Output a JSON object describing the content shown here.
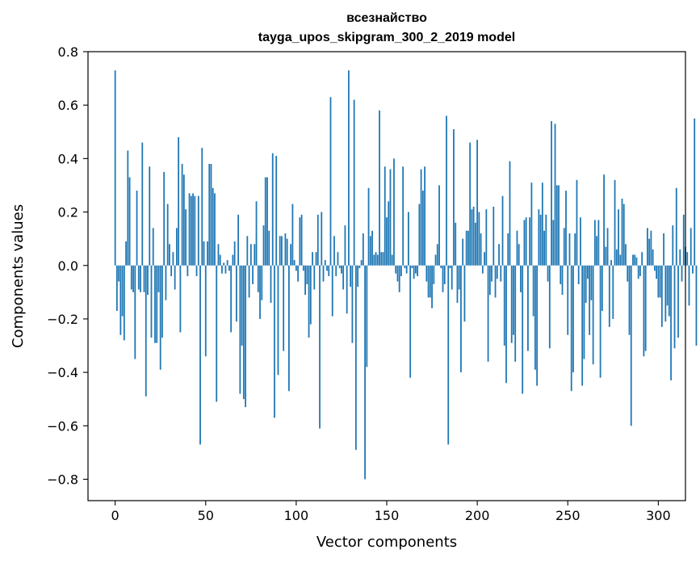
{
  "chart_data": {
    "type": "bar",
    "title_line1": "всезнайство",
    "title_line2": "tayga_upos_skipgram_300_2_2019 model",
    "xlabel": "Vector components",
    "ylabel": "Components values",
    "xlim": [
      -15,
      315
    ],
    "ylim": [
      -0.88,
      0.8
    ],
    "xticks": [
      0,
      50,
      100,
      150,
      200,
      250,
      300
    ],
    "xtick_labels": [
      "0",
      "50",
      "100",
      "150",
      "200",
      "250",
      "300"
    ],
    "yticks": [
      -0.8,
      -0.6,
      -0.4,
      -0.2,
      0.0,
      0.2,
      0.4,
      0.6,
      0.8
    ],
    "ytick_labels": [
      "−0.8",
      "−0.6",
      "−0.4",
      "−0.2",
      "0.0",
      "0.2",
      "0.4",
      "0.6",
      "0.8"
    ],
    "bar_color": "#1f77b4",
    "values": [
      0.73,
      -0.17,
      -0.06,
      -0.26,
      -0.19,
      -0.28,
      0.09,
      0.43,
      0.33,
      -0.09,
      -0.1,
      -0.35,
      0.28,
      -0.09,
      -0.1,
      0.46,
      -0.1,
      -0.49,
      -0.11,
      0.37,
      -0.27,
      0.14,
      -0.29,
      -0.29,
      -0.1,
      -0.39,
      -0.27,
      0.35,
      -0.13,
      0.23,
      0.08,
      -0.04,
      0.05,
      -0.09,
      0.14,
      0.48,
      -0.25,
      0.38,
      0.34,
      0.21,
      -0.04,
      0.27,
      0.26,
      0.27,
      0.26,
      -0.04,
      0.26,
      -0.67,
      0.44,
      0.09,
      -0.34,
      0.09,
      0.38,
      0.38,
      0.29,
      0.27,
      -0.51,
      0.08,
      0.04,
      -0.03,
      0.01,
      -0.03,
      0.02,
      -0.02,
      -0.25,
      0.04,
      0.09,
      -0.21,
      0.19,
      -0.48,
      -0.3,
      -0.5,
      -0.53,
      0.11,
      -0.12,
      0.08,
      -0.07,
      0.08,
      0.24,
      -0.1,
      -0.2,
      -0.13,
      0.15,
      0.33,
      0.33,
      0.13,
      -0.14,
      0.42,
      -0.57,
      0.41,
      -0.41,
      0.11,
      0.11,
      -0.32,
      0.12,
      0.1,
      -0.47,
      0.08,
      0.23,
      0.02,
      -0.02,
      -0.06,
      0.18,
      0.19,
      -0.02,
      -0.11,
      -0.07,
      -0.27,
      -0.22,
      0.05,
      -0.09,
      0.05,
      0.19,
      -0.61,
      0.2,
      -0.06,
      0.02,
      -0.02,
      -0.04,
      0.63,
      -0.19,
      0.11,
      -0.04,
      0.05,
      -0.01,
      -0.03,
      -0.09,
      0.15,
      -0.18,
      0.73,
      -0.08,
      -0.29,
      0.62,
      -0.69,
      -0.08,
      -0.01,
      0.02,
      0.12,
      -0.8,
      -0.38,
      0.29,
      0.11,
      0.13,
      0.04,
      0.05,
      0.04,
      0.58,
      0.05,
      0.05,
      0.37,
      0.18,
      0.24,
      0.36,
      0.04,
      0.4,
      -0.03,
      -0.06,
      -0.1,
      -0.04,
      0.37,
      -0.01,
      -0.03,
      0.2,
      -0.42,
      -0.01,
      -0.05,
      -0.03,
      -0.04,
      0.23,
      0.36,
      0.28,
      0.37,
      -0.06,
      -0.12,
      -0.12,
      -0.16,
      -0.07,
      0.04,
      0.08,
      0.3,
      -0.01,
      -0.1,
      -0.07,
      0.56,
      -0.67,
      -0.01,
      -0.09,
      0.51,
      0.16,
      -0.14,
      -0.09,
      -0.4,
      0.1,
      -0.21,
      0.13,
      0.13,
      0.46,
      0.21,
      0.22,
      0.16,
      0.47,
      0.2,
      0.12,
      -0.03,
      0.05,
      0.21,
      -0.36,
      -0.11,
      -0.06,
      0.22,
      -0.12,
      -0.05,
      0.08,
      -0.06,
      0.26,
      -0.3,
      -0.44,
      0.12,
      0.39,
      -0.29,
      -0.26,
      -0.36,
      0.13,
      0.08,
      -0.1,
      -0.48,
      0.17,
      0.18,
      -0.32,
      0.18,
      0.31,
      -0.19,
      -0.39,
      -0.45,
      0.21,
      0.19,
      0.31,
      0.13,
      0.19,
      -0.06,
      -0.31,
      0.54,
      0.17,
      0.53,
      0.3,
      0.3,
      -0.07,
      -0.11,
      0.14,
      0.28,
      -0.26,
      0.12,
      -0.47,
      -0.4,
      0.12,
      0.32,
      -0.07,
      0.18,
      -0.45,
      -0.35,
      -0.14,
      -0.05,
      -0.26,
      -0.13,
      -0.37,
      0.17,
      0.11,
      0.17,
      -0.42,
      -0.17,
      0.34,
      0.07,
      0.14,
      -0.23,
      0.02,
      -0.2,
      0.32,
      0.06,
      0.21,
      0.04,
      0.25,
      0.23,
      0.08,
      -0.06,
      -0.26,
      -0.6,
      0.04,
      0.04,
      0.03,
      -0.05,
      -0.04,
      0.05,
      -0.34,
      -0.32,
      0.14,
      0.1,
      0.13,
      0.06,
      -0.02,
      -0.05,
      -0.12,
      -0.12,
      -0.23,
      0.12,
      -0.21,
      -0.15,
      -0.19,
      -0.43,
      0.15,
      -0.31,
      0.29,
      -0.27,
      0.06,
      -0.06,
      0.19,
      0.07,
      0.05,
      -0.15,
      0.14,
      -0.03,
      0.55,
      -0.3
    ]
  }
}
